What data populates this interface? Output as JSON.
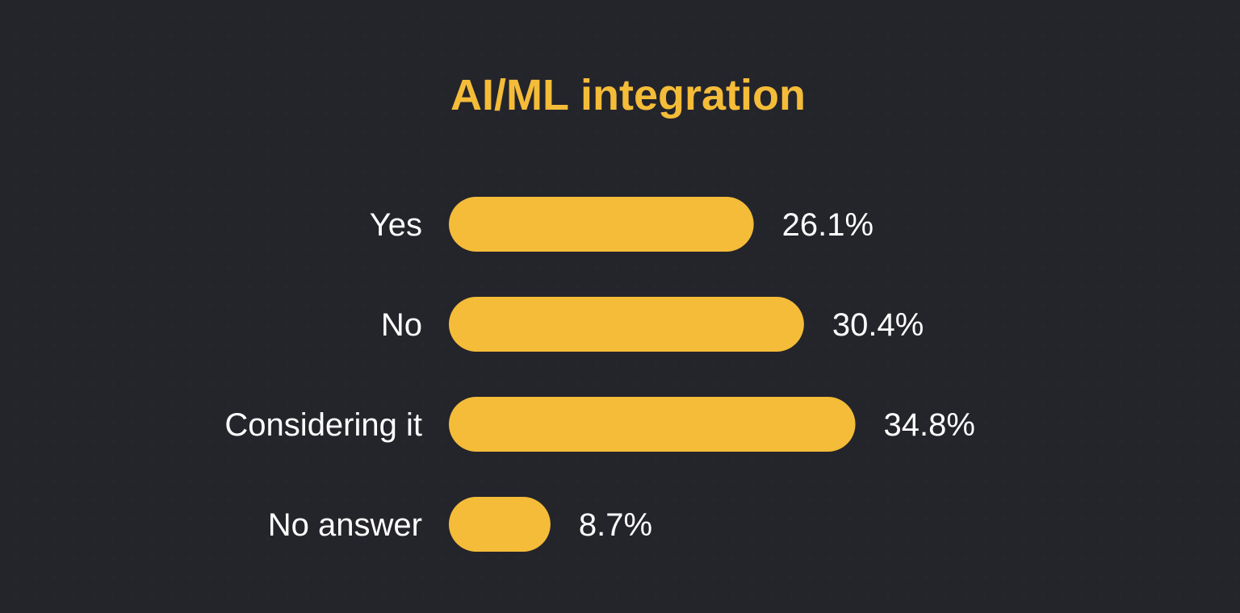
{
  "colors": {
    "background": "#1b1b21",
    "accent": "#f4bc38",
    "text": "#ffffff"
  },
  "chart_data": {
    "type": "bar",
    "orientation": "horizontal",
    "title": "AI/ML integration",
    "categories": [
      "Yes",
      "No",
      "Considering it",
      "No answer"
    ],
    "values": [
      26.1,
      30.4,
      34.8,
      8.7
    ],
    "value_labels": [
      "26.1%",
      "30.4%",
      "34.8%",
      "8.7%"
    ],
    "unit": "%",
    "grid": false,
    "legend": "none"
  }
}
